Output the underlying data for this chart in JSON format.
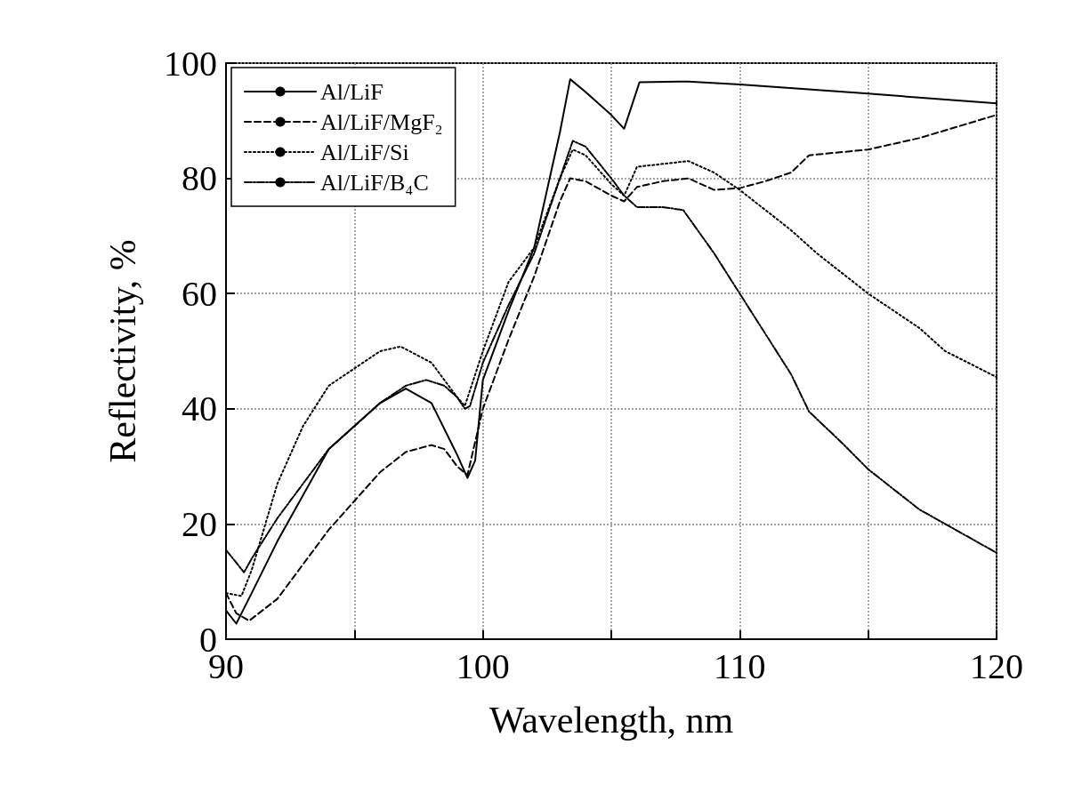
{
  "chart_data": {
    "type": "line",
    "xlabel": "Wavelength, nm",
    "ylabel": "Reflectivity, %",
    "xlim": [
      90,
      120
    ],
    "xticks": [
      90,
      {
        "value": 95,
        "label": null
      },
      100,
      {
        "value": 105,
        "label": null
      },
      110,
      {
        "value": 115,
        "label": null
      },
      120
    ],
    "ylim": [
      0,
      100
    ],
    "yticks": [
      0,
      20,
      40,
      60,
      80,
      100
    ],
    "grid": true,
    "legend": "top left",
    "marker": "none",
    "series": [
      {
        "name": "Al/LiF",
        "color": "#000000",
        "line_style": "solid",
        "x": [
          90,
          90.4,
          91,
          92,
          93,
          94,
          95,
          96,
          97,
          98,
          99,
          99.4,
          99.7,
          100,
          101,
          102,
          103,
          103.4,
          104,
          105,
          105.5,
          106.1,
          108,
          110,
          115,
          120
        ],
        "values": [
          5,
          2.7,
          8,
          17,
          25,
          33,
          37,
          41,
          43.5,
          41,
          32,
          28,
          31,
          45,
          57,
          68,
          88,
          97.2,
          95,
          91,
          88.6,
          96.7,
          96.8,
          96.3,
          94.7,
          93
        ]
      },
      {
        "name": "Al/LiF/MgF₂",
        "color": "#000000",
        "line_style": "dashed",
        "x": [
          90,
          90.4,
          90.9,
          92,
          93,
          94,
          95,
          96,
          97,
          98,
          98.5,
          99,
          99.4,
          100,
          101,
          102,
          103,
          103.4,
          104,
          105,
          105.5,
          106,
          107,
          108,
          108.5,
          109,
          110,
          111,
          112,
          112.7,
          115,
          117,
          120
        ],
        "values": [
          8,
          4.5,
          3.2,
          7,
          13,
          19,
          24,
          29,
          32.5,
          33.7,
          33,
          30,
          28.5,
          40,
          52,
          63,
          76,
          80,
          79.5,
          77,
          76,
          78.5,
          79.5,
          80,
          79,
          78,
          78.3,
          79.5,
          81,
          84,
          85,
          87,
          91
        ]
      },
      {
        "name": "Al/LiF/Si",
        "color": "#000000",
        "line_style": "dotted",
        "x": [
          90,
          90.6,
          91,
          92,
          93,
          94,
          95,
          96,
          96.8,
          98,
          99,
          99.3,
          100,
          101,
          102,
          103,
          103.5,
          104,
          105,
          105.5,
          106,
          108,
          109,
          110,
          112,
          113,
          115,
          117,
          118,
          120
        ],
        "values": [
          8,
          7.5,
          12,
          27,
          37,
          44,
          47,
          50,
          50.8,
          48,
          42,
          40.5,
          50,
          62,
          68,
          80,
          85,
          84,
          79,
          77,
          82,
          83,
          81,
          78,
          71,
          67,
          60,
          54,
          50,
          45.5
        ]
      },
      {
        "name": "Al/LiF/B₄C",
        "color": "#000000",
        "line_style": "dashdot",
        "x": [
          90,
          90.7,
          91,
          92,
          93,
          94,
          95,
          96,
          97,
          97.8,
          98.5,
          99,
          99.3,
          99.5,
          100,
          101,
          102,
          103,
          103.5,
          104,
          105,
          105.5,
          106,
          107,
          107.8,
          109,
          110,
          111,
          112,
          112.7,
          114,
          115,
          117,
          118,
          120
        ],
        "values": [
          15.5,
          11.6,
          14,
          21,
          27,
          33,
          37,
          41,
          44,
          45,
          44,
          42,
          40,
          40.5,
          48,
          58,
          67,
          80,
          86.5,
          85.5,
          80,
          77,
          75,
          75,
          74.5,
          67,
          60,
          53,
          46,
          39.5,
          34,
          29.5,
          22.5,
          20,
          15
        ]
      }
    ]
  }
}
